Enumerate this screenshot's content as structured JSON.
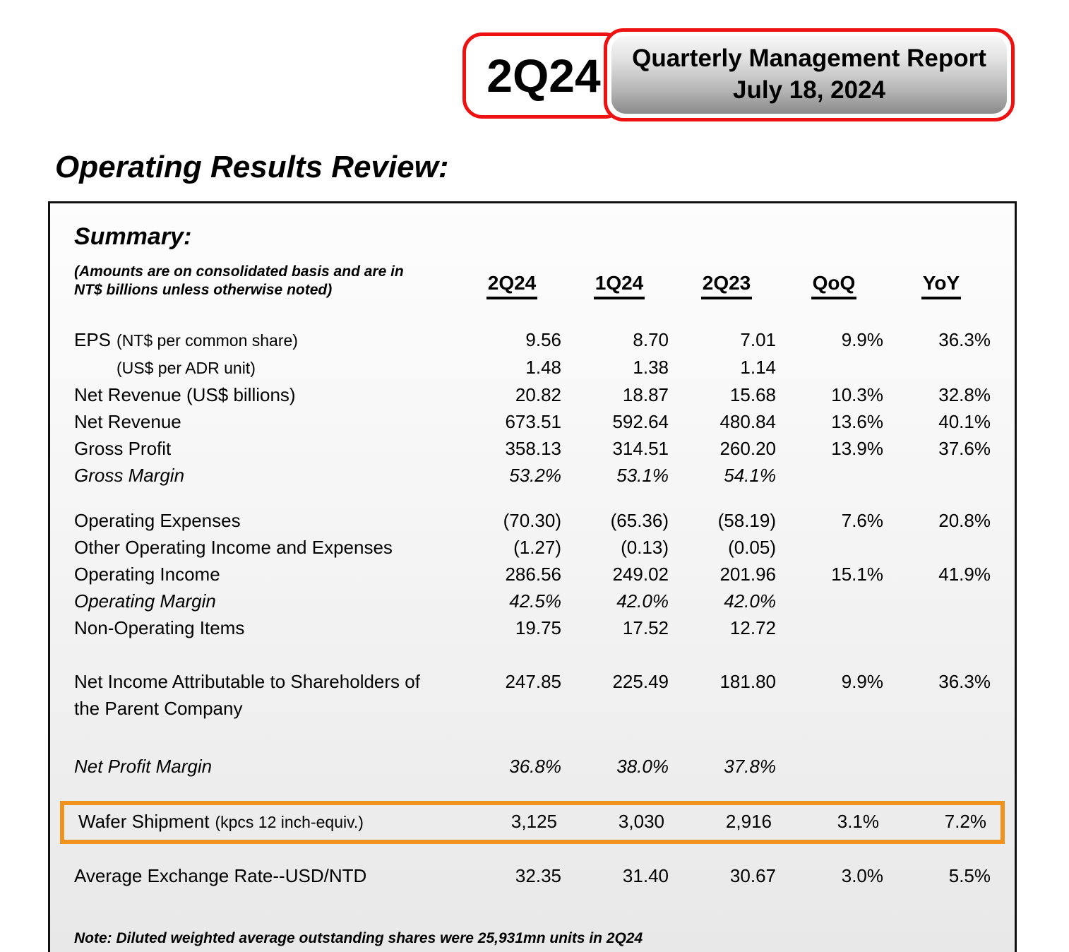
{
  "banner": {
    "quarter": "2Q24",
    "title": "Quarterly Management Report",
    "date": "July 18, 2024"
  },
  "page_title": "Operating Results Review:",
  "summary": {
    "heading": "Summary:",
    "subtitle": [
      "(Amounts are on consolidated basis and are in",
      "NT$ billions unless otherwise noted)"
    ],
    "columns": [
      "2Q24",
      "1Q24",
      "2Q23",
      "QoQ",
      "YoY"
    ],
    "rows": [
      {
        "label": "EPS",
        "note": "(NT$ per common share)",
        "values": [
          "9.56",
          "8.70",
          "7.01",
          "9.9%",
          "36.3%"
        ]
      },
      {
        "label": "",
        "note": "(US$ per ADR unit)",
        "values": [
          "1.48",
          "1.38",
          "1.14",
          "",
          ""
        ]
      },
      {
        "label": "Net Revenue (US$ billions)",
        "note": "",
        "values": [
          "20.82",
          "18.87",
          "15.68",
          "10.3%",
          "32.8%"
        ]
      },
      {
        "label": "Net Revenue",
        "note": "",
        "values": [
          "673.51",
          "592.64",
          "480.84",
          "13.6%",
          "40.1%"
        ]
      },
      {
        "label": "Gross Profit",
        "note": "",
        "values": [
          "358.13",
          "314.51",
          "260.20",
          "13.9%",
          "37.6%"
        ]
      },
      {
        "label": "Gross Margin",
        "note": "",
        "values": [
          "53.2%",
          "53.1%",
          "54.1%",
          "",
          ""
        ]
      },
      {
        "label": "Operating Expenses",
        "note": "",
        "values": [
          "(70.30)",
          "(65.36)",
          "(58.19)",
          "7.6%",
          "20.8%"
        ]
      },
      {
        "label": "Other Operating Income and Expenses",
        "note": "",
        "values": [
          "(1.27)",
          "(0.13)",
          "(0.05)",
          "",
          ""
        ]
      },
      {
        "label": "Operating Income",
        "note": "",
        "values": [
          "286.56",
          "249.02",
          "201.96",
          "15.1%",
          "41.9%"
        ]
      },
      {
        "label": "Operating Margin",
        "note": "",
        "values": [
          "42.5%",
          "42.0%",
          "42.0%",
          "",
          ""
        ]
      },
      {
        "label": "Non-Operating Items",
        "note": "",
        "values": [
          "19.75",
          "17.52",
          "12.72",
          "",
          ""
        ]
      },
      {
        "label": "Net Income Attributable to Shareholders of",
        "label2": "the Parent Company",
        "note": "",
        "values": [
          "247.85",
          "225.49",
          "181.80",
          "9.9%",
          "36.3%"
        ]
      },
      {
        "label": "Net Profit Margin",
        "note": "",
        "values": [
          "36.8%",
          "38.0%",
          "37.8%",
          "",
          ""
        ]
      },
      {
        "label": "Wafer Shipment",
        "note": "(kpcs 12 inch-equiv.)",
        "values": [
          "3,125",
          "3,030",
          "2,916",
          "3.1%",
          "7.2%"
        ]
      },
      {
        "label": "Average Exchange Rate--USD/NTD",
        "note": "",
        "values": [
          "32.35",
          "31.40",
          "30.67",
          "3.0%",
          "5.5%"
        ]
      }
    ],
    "note": "Note: Diluted weighted average outstanding shares were 25,931mn units in 2Q24"
  },
  "colors": {
    "accent_red": "#ee1111",
    "highlight_orange": "#f0921e"
  }
}
